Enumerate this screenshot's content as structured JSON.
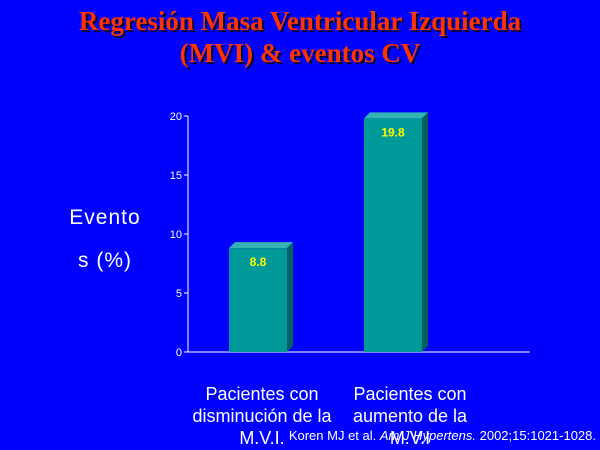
{
  "title_line1": "Regresión Masa Ventricular Izquierda",
  "title_line2": "(MVI) & eventos CV",
  "colors": {
    "background": "#0000ff",
    "title": "#ff3300",
    "bar_front": "#009999",
    "bar_side": "#006060",
    "bar_top": "#33b3b3",
    "data_label": "#ffff00",
    "axis": "#ffffff"
  },
  "chart_data": {
    "type": "bar",
    "title": "Regresión Masa Ventricular Izquierda (MVI) & eventos CV",
    "ylabel_line1": "Evento",
    "ylabel_line2": "s (%)",
    "categories": [
      [
        "Pacientes con",
        "disminución de la",
        "M.V.I."
      ],
      [
        "Pacientes con",
        "aumento de la",
        "M.V.I"
      ]
    ],
    "values": [
      8.8,
      19.8
    ],
    "data_labels": [
      "8.8",
      "19.8"
    ],
    "ylim": [
      0,
      20
    ],
    "yticks": [
      0,
      5,
      10,
      15,
      20
    ],
    "ytick_labels": [
      "0",
      "5",
      "10",
      "15",
      "20"
    ],
    "grid": false
  },
  "citation": {
    "authors": "Koren MJ et al.",
    "journal": "Am J Hypertens.",
    "details": "2002;15:1021-1028."
  }
}
